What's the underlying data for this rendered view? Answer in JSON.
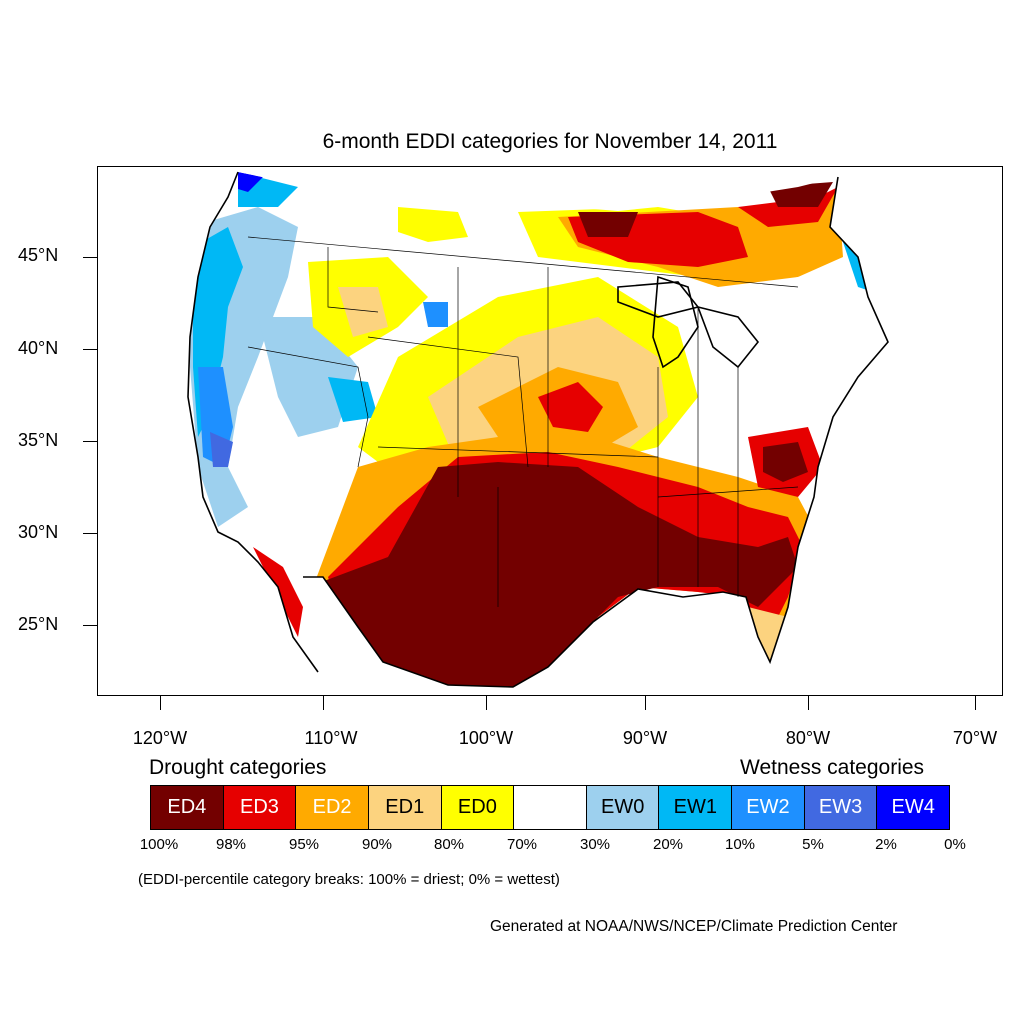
{
  "title": "6-month EDDI categories for November 14, 2011",
  "lat_labels": [
    "45°N",
    "40°N",
    "35°N",
    "30°N",
    "25°N"
  ],
  "lon_labels": [
    "120°W",
    "110°W",
    "100°W",
    "90°W",
    "80°W",
    "70°W"
  ],
  "legend": {
    "drought_heading": "Drought categories",
    "wetness_heading": "Wetness categories",
    "categories": [
      {
        "label": "ED4",
        "color": "#730000",
        "text_color": "#ffffff"
      },
      {
        "label": "ED3",
        "color": "#e60000",
        "text_color": "#ffffff"
      },
      {
        "label": "ED2",
        "color": "#ffaa00",
        "text_color": "#ffffff"
      },
      {
        "label": "ED1",
        "color": "#fcd37f",
        "text_color": "#000000"
      },
      {
        "label": "ED0",
        "color": "#ffff00",
        "text_color": "#000000"
      },
      {
        "label": "",
        "color": "#ffffff",
        "text_color": "#000000"
      },
      {
        "label": "EW0",
        "color": "#9dd0ee",
        "text_color": "#000000"
      },
      {
        "label": "EW1",
        "color": "#00b8f5",
        "text_color": "#000000"
      },
      {
        "label": "EW2",
        "color": "#1e90ff",
        "text_color": "#ffffff"
      },
      {
        "label": "EW3",
        "color": "#4169e1",
        "text_color": "#ffffff"
      },
      {
        "label": "EW4",
        "color": "#0000ff",
        "text_color": "#ffffff"
      }
    ],
    "breaks": [
      "100%",
      "98%",
      "95%",
      "90%",
      "80%",
      "70%",
      "30%",
      "20%",
      "10%",
      "5%",
      "2%",
      "0%"
    ]
  },
  "breaks_note": "(EDDI-percentile category breaks: 100% = driest; 0% = wettest)",
  "credit": "Generated at NOAA/NWS/NCEP/Climate Prediction Center"
}
